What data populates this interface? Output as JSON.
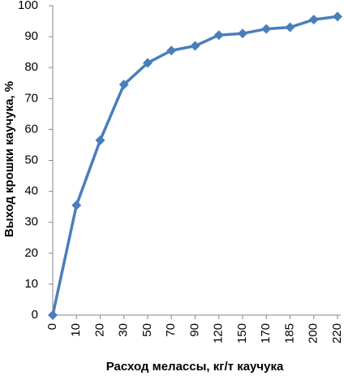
{
  "chart_data": {
    "type": "line",
    "x_label": "Расход мелассы, кг/т каучука",
    "y_label": "Выход крошки каучука, %",
    "categories": [
      "0",
      "10",
      "20",
      "30",
      "50",
      "70",
      "90",
      "120",
      "150",
      "170",
      "185",
      "200",
      "220"
    ],
    "values": [
      0,
      35.5,
      56.5,
      74.5,
      81.5,
      85.5,
      87,
      90.5,
      91,
      92.5,
      93,
      95.5,
      96.5
    ],
    "color": "#4a7ebb",
    "ylim": [
      0,
      100
    ],
    "yticks": [
      0,
      10,
      20,
      30,
      40,
      50,
      60,
      70,
      80,
      90,
      100
    ],
    "grid": false
  }
}
